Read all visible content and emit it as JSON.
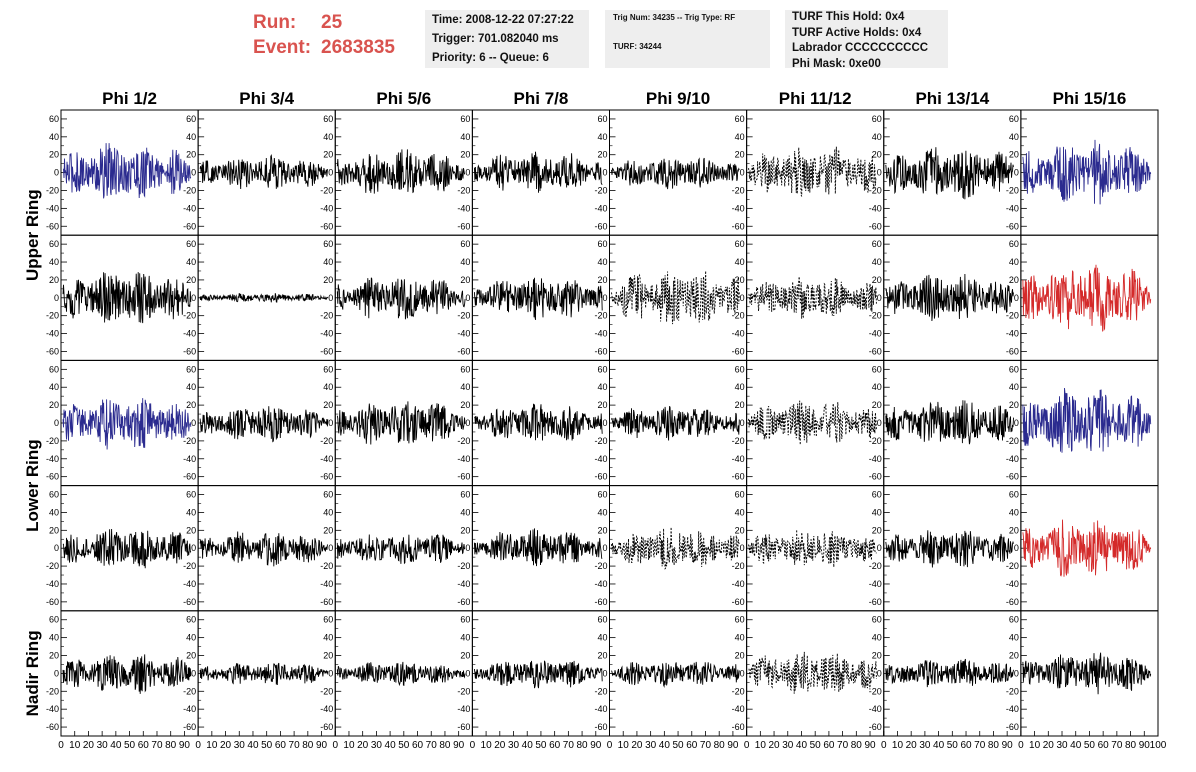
{
  "header": {
    "run_label": "Run:",
    "run_value": "25",
    "event_label": "Event:",
    "event_value": "2683835"
  },
  "info": {
    "time": "Time: 2008-12-22 07:27:22",
    "trigger": "Trigger: 701.082040 ms",
    "priority": "Priority: 6 -- Queue: 6",
    "trig_num": "Trig Num: 34235 -- Trig Type: RF",
    "turf": "TURF: 34244",
    "turf_hold": "TURF This Hold: 0x4",
    "turf_active": "TURF Active Holds: 0x4",
    "labrador": "Labrador CCCCCCCCCC",
    "phi_mask": "Phi Mask: 0xe00"
  },
  "colors": {
    "black": "#000000",
    "blue": "#2b2b8f",
    "red": "#d42a2a",
    "run_text": "#d9534f",
    "info_bg": "#eeeeee"
  },
  "chart_data": {
    "type": "line",
    "columns": [
      "Phi 1/2",
      "Phi 3/4",
      "Phi 5/6",
      "Phi 7/8",
      "Phi 9/10",
      "Phi 11/12",
      "Phi 13/14",
      "Phi 15/16"
    ],
    "rows": [
      "Upper Ring",
      "Upper Ring",
      "Lower Ring",
      "Lower Ring",
      "Nadir Ring"
    ],
    "row_titles": [
      {
        "label": "Upper Ring",
        "spans": [
          0,
          1
        ]
      },
      {
        "label": "Lower Ring",
        "spans": [
          2,
          3
        ]
      },
      {
        "label": "Nadir Ring",
        "spans": [
          4
        ]
      }
    ],
    "xlim": [
      0,
      100
    ],
    "ylim": [
      -70,
      70
    ],
    "yticks": [
      -60,
      -40,
      -20,
      0,
      20,
      40,
      60
    ],
    "xtick_labels": [
      "0",
      "10",
      "20",
      "30",
      "40",
      "50",
      "60",
      "70",
      "80",
      "90",
      "100"
    ],
    "trace_samples": 256,
    "traces": [
      [
        {
          "a": 20,
          "style": "blue"
        },
        {
          "a": 12,
          "style": "solid"
        },
        {
          "a": 16,
          "style": "solid"
        },
        {
          "a": 14,
          "style": "solid"
        },
        {
          "a": 11,
          "style": "solid"
        },
        {
          "a": 18,
          "style": "dashed"
        },
        {
          "a": 18,
          "style": "solid"
        },
        {
          "a": 22,
          "style": "blue"
        }
      ],
      [
        {
          "a": 19,
          "style": "solid"
        },
        {
          "a": 3,
          "style": "solid"
        },
        {
          "a": 15,
          "style": "solid"
        },
        {
          "a": 15,
          "style": "solid"
        },
        {
          "a": 20,
          "style": "dashed"
        },
        {
          "a": 14,
          "style": "dashed"
        },
        {
          "a": 16,
          "style": "solid"
        },
        {
          "a": 24,
          "style": "red"
        }
      ],
      [
        {
          "a": 18,
          "style": "blue"
        },
        {
          "a": 12,
          "style": "solid"
        },
        {
          "a": 16,
          "style": "solid"
        },
        {
          "a": 13,
          "style": "solid"
        },
        {
          "a": 12,
          "style": "solid"
        },
        {
          "a": 15,
          "style": "dashed"
        },
        {
          "a": 16,
          "style": "solid"
        },
        {
          "a": 24,
          "style": "blue"
        }
      ],
      [
        {
          "a": 14,
          "style": "solid"
        },
        {
          "a": 12,
          "style": "solid"
        },
        {
          "a": 11,
          "style": "solid"
        },
        {
          "a": 13,
          "style": "solid"
        },
        {
          "a": 14,
          "style": "dashed"
        },
        {
          "a": 13,
          "style": "dashed"
        },
        {
          "a": 13,
          "style": "solid"
        },
        {
          "a": 20,
          "style": "red"
        }
      ],
      [
        {
          "a": 14,
          "style": "solid"
        },
        {
          "a": 8,
          "style": "solid"
        },
        {
          "a": 8,
          "style": "solid"
        },
        {
          "a": 10,
          "style": "solid"
        },
        {
          "a": 9,
          "style": "solid"
        },
        {
          "a": 15,
          "style": "dashed"
        },
        {
          "a": 10,
          "style": "solid"
        },
        {
          "a": 14,
          "style": "solid"
        }
      ]
    ]
  }
}
